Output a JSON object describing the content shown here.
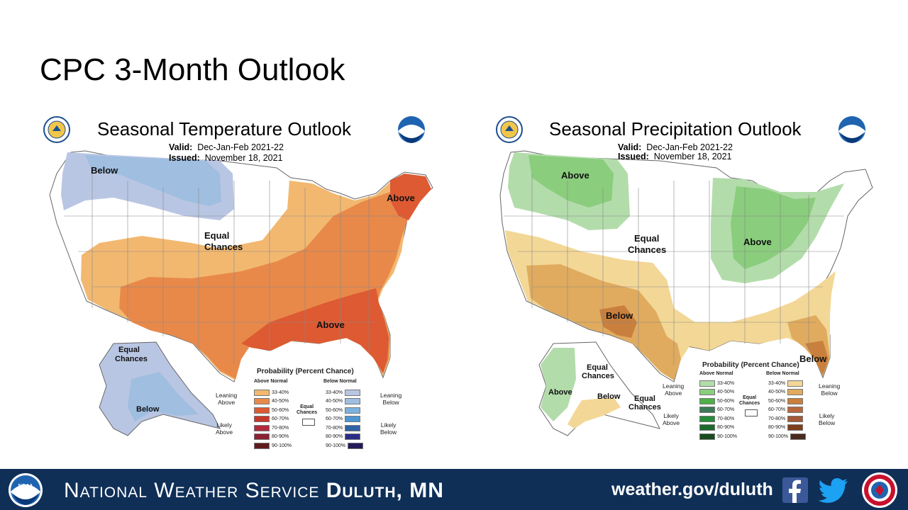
{
  "slide": {
    "title": "CPC 3-Month Outlook"
  },
  "temperature": {
    "title": "Seasonal Temperature Outlook",
    "valid_label": "Valid:",
    "valid_value": "Dec-Jan-Feb 2021-22",
    "issued_label": "Issued:",
    "issued_value": "November 18, 2021",
    "labels": {
      "below_nw": "Below",
      "equal_chances_1": "Equal",
      "equal_chances_2": "Chances",
      "above_ne": "Above",
      "above_se": "Above",
      "ak_equal_1": "Equal",
      "ak_equal_2": "Chances",
      "ak_below": "Below"
    },
    "legend": {
      "title": "Probability (Percent Chance)",
      "above_header": "Above Normal",
      "below_header": "Below Normal",
      "leaning_above": [
        "Leaning",
        "Above"
      ],
      "likely_above": [
        "Likely",
        "Above"
      ],
      "leaning_below": [
        "Leaning",
        "Below"
      ],
      "likely_below": [
        "Likely",
        "Below"
      ],
      "equal": [
        "Equal",
        "Chances"
      ],
      "ranges": [
        "33-40%",
        "40-50%",
        "50-60%",
        "60-70%",
        "70-80%",
        "80-90%",
        "90-100%"
      ],
      "above_colors": [
        "#f2b870",
        "#e8894a",
        "#dd5a33",
        "#c8372b",
        "#b02a3c",
        "#8a2233",
        "#5e1b1e"
      ],
      "below_colors": [
        "#b9c6e3",
        "#9fbee0",
        "#7cb2de",
        "#4e96d3",
        "#2e63a6",
        "#2d2d86",
        "#231a5a"
      ]
    }
  },
  "precipitation": {
    "title": "Seasonal Precipitation Outlook",
    "valid_label": "Valid:",
    "valid_value": "Dec-Jan-Feb 2021-22",
    "issued_label": "Issued:",
    "issued_value": "November 18, 2021",
    "labels": {
      "above_nw": "Above",
      "equal_chances_1": "Equal",
      "equal_chances_2": "Chances",
      "above_gl": "Above",
      "below_sw": "Below",
      "below_fl": "Below",
      "ak_equal_1": "Equal",
      "ak_equal_2": "Chances",
      "ak_above": "Above",
      "ak_below": "Below",
      "ak_equal_b1": "Equal",
      "ak_equal_b2": "Chances"
    },
    "legend": {
      "title": "Probability (Percent Chance)",
      "above_header": "Above Normal",
      "below_header": "Below Normal",
      "leaning_above": [
        "Leaning",
        "Above"
      ],
      "likely_above": [
        "Likely",
        "Above"
      ],
      "leaning_below": [
        "Leaning",
        "Below"
      ],
      "likely_below": [
        "Likely",
        "Below"
      ],
      "equal": [
        "Equal",
        "Chances"
      ],
      "ranges": [
        "33-40%",
        "40-50%",
        "50-60%",
        "60-70%",
        "70-80%",
        "80-90%",
        "90-100%"
      ],
      "above_colors": [
        "#b3dcab",
        "#8acd7d",
        "#4fb04a",
        "#3d7a58",
        "#258c3a",
        "#1c6a2c",
        "#1a4a1e"
      ],
      "below_colors": [
        "#f3d796",
        "#e0ab5e",
        "#c97f3d",
        "#b9683c",
        "#a45a36",
        "#7f3f1c",
        "#4a2a1c"
      ]
    }
  },
  "footer": {
    "agency_light": "National Weather Service ",
    "agency_bold": "Duluth, MN",
    "url": "weather.gov/duluth",
    "noaa_text": "NOAA"
  }
}
